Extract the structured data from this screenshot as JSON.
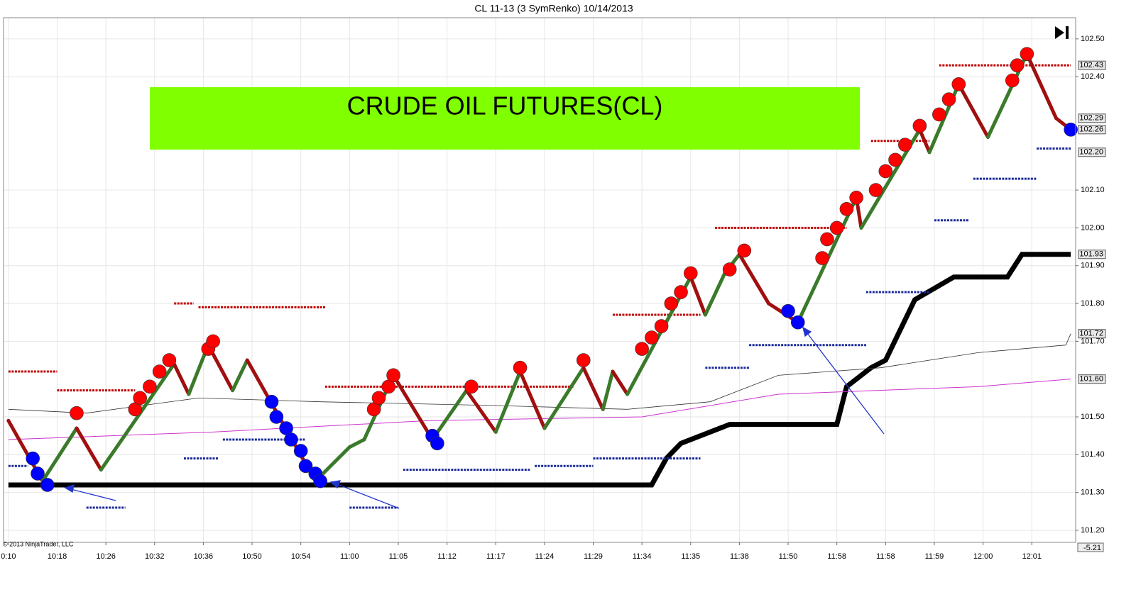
{
  "chart_data": {
    "type": "renko",
    "title": "CL 11-13 (3 SymRenko)  10/14/2013",
    "annotation": "CRUDE OIL FUTURES(CL)",
    "copyright": "© 2013 NinjaTrader, LLC",
    "indicator_value": -5.21,
    "grid": true,
    "xlim": [
      -1,
      219
    ],
    "xticks": [
      {
        "value": 0,
        "label": "0:10"
      },
      {
        "value": 10,
        "label": "10:18"
      },
      {
        "value": 20,
        "label": "10:26"
      },
      {
        "value": 30,
        "label": "10:32"
      },
      {
        "value": 40,
        "label": "10:36"
      },
      {
        "value": 50,
        "label": "10:50"
      },
      {
        "value": 60,
        "label": "10:54"
      },
      {
        "value": 70,
        "label": "11:00"
      },
      {
        "value": 80,
        "label": "11:05"
      },
      {
        "value": 90,
        "label": "11:12"
      },
      {
        "value": 100,
        "label": "11:17"
      },
      {
        "value": 110,
        "label": "11:24"
      },
      {
        "value": 120,
        "label": "11:29"
      },
      {
        "value": 130,
        "label": "11:34"
      },
      {
        "value": 140,
        "label": "11:35"
      },
      {
        "value": 150,
        "label": "11:38"
      },
      {
        "value": 160,
        "label": "11:50"
      },
      {
        "value": 170,
        "label": "11:58"
      },
      {
        "value": 180,
        "label": "11:58"
      },
      {
        "value": 190,
        "label": "11:59"
      },
      {
        "value": 200,
        "label": "12:00"
      },
      {
        "value": 210,
        "label": "12:01"
      }
    ],
    "ylim": [
      101.168,
      102.556
    ],
    "yticks": [
      {
        "value": 101.2,
        "label": "101.20"
      },
      {
        "value": 101.3,
        "label": "101.30"
      },
      {
        "value": 101.4,
        "label": "101.40"
      },
      {
        "value": 101.5,
        "label": "101.50"
      },
      {
        "value": 101.7,
        "label": "101.70"
      },
      {
        "value": 101.8,
        "label": "101.80"
      },
      {
        "value": 101.9,
        "label": "101.90"
      },
      {
        "value": 102.0,
        "label": "102.00"
      },
      {
        "value": 102.1,
        "label": "102.10"
      },
      {
        "value": 102.4,
        "label": "102.40"
      },
      {
        "value": 102.5,
        "label": "102.50"
      }
    ],
    "price": {
      "up_color": "#3a7a2a",
      "down_color": "#a01010",
      "x": [
        0,
        7,
        14,
        19,
        34,
        37,
        41,
        46,
        49,
        63,
        70,
        73,
        79,
        87,
        94,
        100,
        105,
        110,
        118,
        122,
        124,
        127,
        140,
        143,
        147,
        150,
        156,
        162,
        174,
        175,
        187,
        189,
        195,
        201,
        209,
        215,
        218
      ],
      "values": [
        101.49,
        101.33,
        101.47,
        101.36,
        101.64,
        101.56,
        101.69,
        101.57,
        101.65,
        101.33,
        101.42,
        101.44,
        101.61,
        101.44,
        101.57,
        101.46,
        101.62,
        101.47,
        101.63,
        101.52,
        101.62,
        101.56,
        101.87,
        101.77,
        101.88,
        101.93,
        101.8,
        101.75,
        102.08,
        102.0,
        102.26,
        102.2,
        102.38,
        102.24,
        102.46,
        102.29,
        102.26
      ]
    },
    "lines": [
      {
        "color": "#000000",
        "width": 7,
        "x": [
          0,
          132,
          135,
          138,
          148,
          170,
          172,
          177,
          180,
          186,
          194,
          205,
          208,
          218
        ],
        "values": [
          101.32,
          101.32,
          101.39,
          101.43,
          101.48,
          101.48,
          101.58,
          101.63,
          101.65,
          101.81,
          101.87,
          101.87,
          101.93,
          101.93
        ]
      },
      {
        "color": "#333333",
        "width": 0.8,
        "x": [
          0,
          16,
          39,
          64,
          100,
          127,
          144,
          158,
          179,
          199,
          217,
          218
        ],
        "values": [
          101.52,
          101.51,
          101.55,
          101.54,
          101.53,
          101.52,
          101.54,
          101.61,
          101.63,
          101.67,
          101.69,
          101.72
        ]
      },
      {
        "color": "#cc33cc",
        "width": 1,
        "x": [
          0,
          42,
          86,
          130,
          158,
          199,
          218
        ],
        "values": [
          101.44,
          101.46,
          101.49,
          101.5,
          101.56,
          101.58,
          101.6
        ]
      }
    ],
    "levels": [
      {
        "color": "#c00000",
        "x_start": [
          0,
          10,
          34,
          39,
          65,
          124,
          145,
          177,
          191
        ],
        "x_end": [
          10,
          26,
          38,
          65,
          116,
          142,
          172,
          189,
          218
        ],
        "values": [
          101.62,
          101.57,
          101.8,
          101.79,
          101.58,
          101.77,
          102.0,
          102.23,
          102.43
        ]
      },
      {
        "color": "#1a2a9a",
        "x_start": [
          0,
          16,
          36,
          44,
          70,
          81,
          108,
          120,
          143,
          152,
          176,
          190,
          198,
          211
        ],
        "x_end": [
          4,
          24,
          43,
          61,
          80,
          107,
          120,
          142,
          152,
          176,
          189,
          197,
          211,
          218
        ],
        "values": [
          101.37,
          101.26,
          101.39,
          101.44,
          101.26,
          101.36,
          101.37,
          101.39,
          101.63,
          101.69,
          101.83,
          102.02,
          102.13,
          102.21
        ]
      }
    ],
    "signals": [
      {
        "color": "#ff0000",
        "x": [
          14,
          26,
          27,
          29,
          31,
          33,
          41,
          42,
          75,
          76,
          78,
          79,
          95,
          105,
          118,
          130,
          132,
          134,
          136,
          138,
          140,
          148,
          151,
          167,
          168,
          170,
          172,
          174,
          178,
          180,
          182,
          184,
          187,
          191,
          193,
          195,
          206,
          207,
          209
        ],
        "values": [
          101.51,
          101.52,
          101.55,
          101.58,
          101.62,
          101.65,
          101.68,
          101.7,
          101.52,
          101.55,
          101.58,
          101.61,
          101.58,
          101.63,
          101.65,
          101.68,
          101.71,
          101.74,
          101.8,
          101.83,
          101.88,
          101.89,
          101.94,
          101.92,
          101.97,
          102.0,
          102.05,
          102.08,
          102.1,
          102.15,
          102.18,
          102.22,
          102.27,
          102.3,
          102.34,
          102.38,
          102.39,
          102.43,
          102.46
        ]
      },
      {
        "color": "#0000ff",
        "x": [
          5,
          6,
          8,
          54,
          55,
          57,
          58,
          60,
          61,
          63,
          64,
          87,
          88,
          160,
          162,
          218
        ],
        "values": [
          101.39,
          101.35,
          101.32,
          101.54,
          101.5,
          101.47,
          101.44,
          101.41,
          101.37,
          101.35,
          101.33,
          101.45,
          101.43,
          101.78,
          101.75,
          102.26
        ]
      }
    ],
    "price_markers": [
      102.43,
      102.29,
      102.26,
      {
        "value": 102.2,
        "label": "102.20"
      },
      101.93,
      101.72,
      {
        "value": 101.6,
        "label": "101.60"
      }
    ]
  }
}
